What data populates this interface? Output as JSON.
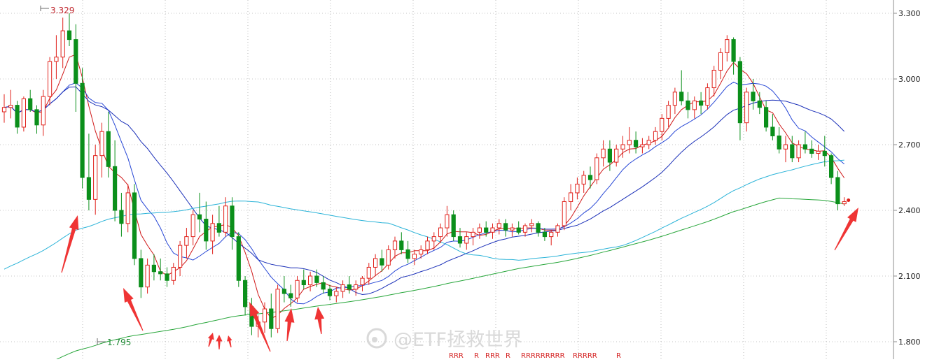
{
  "chart_data": {
    "type": "candlestick",
    "y_axis": {
      "ticks": [
        1.8,
        2.1,
        2.4,
        2.7,
        3.0,
        3.3
      ],
      "tick_labels": [
        "1.800",
        "2.100",
        "2.400",
        "2.700",
        "3.000",
        "3.300"
      ],
      "range": [
        1.77,
        3.35
      ]
    },
    "annotations": {
      "max_label": "3.329",
      "max_value": 3.329,
      "min_label": "1.795",
      "min_value": 1.795
    },
    "watermark": "@ETF拯救世界",
    "bottom_markers": [
      "RRR",
      "R",
      "RRR",
      "R",
      "RRRRRRRRR",
      "RRRRR",
      "R"
    ],
    "colors": {
      "up": "#e0211b",
      "down": "#0b8f1b",
      "ma5": "#d01818",
      "ma10": "#2747d6",
      "ma20": "#1a2fb8",
      "ma60": "#2ab3d8",
      "ma120": "#27a63a",
      "arrow": "#ef3434"
    },
    "ohlc": [
      [
        2.85,
        2.93,
        2.8,
        2.87
      ],
      [
        2.87,
        2.95,
        2.82,
        2.88
      ],
      [
        2.88,
        2.9,
        2.75,
        2.78
      ],
      [
        2.78,
        2.92,
        2.76,
        2.91
      ],
      [
        2.91,
        2.95,
        2.85,
        2.86
      ],
      [
        2.86,
        2.88,
        2.75,
        2.79
      ],
      [
        2.79,
        2.95,
        2.74,
        2.92
      ],
      [
        2.92,
        3.1,
        2.88,
        3.08
      ],
      [
        3.08,
        3.2,
        3.0,
        3.1
      ],
      [
        3.1,
        3.28,
        3.05,
        3.22
      ],
      [
        3.22,
        3.3,
        3.15,
        3.18
      ],
      [
        3.18,
        3.25,
        2.85,
        2.98
      ],
      [
        2.98,
        3.05,
        2.5,
        2.55
      ],
      [
        2.55,
        2.75,
        2.4,
        2.45
      ],
      [
        2.45,
        2.7,
        2.38,
        2.65
      ],
      [
        2.65,
        2.8,
        2.55,
        2.76
      ],
      [
        2.76,
        2.85,
        2.55,
        2.6
      ],
      [
        2.6,
        2.72,
        2.35,
        2.4
      ],
      [
        2.4,
        2.48,
        2.28,
        2.34
      ],
      [
        2.34,
        2.52,
        2.3,
        2.48
      ],
      [
        2.48,
        2.52,
        2.15,
        2.18
      ],
      [
        2.18,
        2.22,
        2.0,
        2.05
      ],
      [
        2.05,
        2.18,
        2.02,
        2.15
      ],
      [
        2.15,
        2.2,
        2.08,
        2.12
      ],
      [
        2.12,
        2.18,
        2.08,
        2.11
      ],
      [
        2.11,
        2.14,
        2.05,
        2.08
      ],
      [
        2.08,
        2.16,
        2.06,
        2.14
      ],
      [
        2.14,
        2.26,
        2.1,
        2.24
      ],
      [
        2.24,
        2.32,
        2.18,
        2.28
      ],
      [
        2.28,
        2.4,
        2.24,
        2.38
      ],
      [
        2.38,
        2.48,
        2.3,
        2.36
      ],
      [
        2.36,
        2.44,
        2.22,
        2.26
      ],
      [
        2.26,
        2.38,
        2.2,
        2.34
      ],
      [
        2.34,
        2.42,
        2.28,
        2.3
      ],
      [
        2.3,
        2.46,
        2.28,
        2.42
      ],
      [
        2.42,
        2.46,
        2.22,
        2.28
      ],
      [
        2.28,
        2.3,
        2.05,
        2.08
      ],
      [
        2.08,
        2.1,
        1.92,
        1.96
      ],
      [
        1.96,
        2.0,
        1.83,
        1.87
      ],
      [
        1.87,
        1.92,
        1.82,
        1.89
      ],
      [
        1.89,
        1.98,
        1.84,
        1.95
      ],
      [
        1.95,
        2.02,
        1.82,
        1.86
      ],
      [
        1.86,
        2.06,
        1.84,
        2.04
      ],
      [
        2.04,
        2.1,
        1.98,
        2.02
      ],
      [
        2.02,
        2.06,
        1.96,
        2.0
      ],
      [
        2.0,
        2.1,
        1.98,
        2.08
      ],
      [
        2.08,
        2.13,
        2.04,
        2.06
      ],
      [
        2.06,
        2.12,
        2.03,
        2.1
      ],
      [
        2.1,
        2.13,
        2.05,
        2.07
      ],
      [
        2.07,
        2.1,
        2.02,
        2.04
      ],
      [
        2.04,
        2.06,
        1.99,
        2.01
      ],
      [
        2.01,
        2.05,
        1.98,
        2.03
      ],
      [
        2.03,
        2.08,
        2.0,
        2.06
      ],
      [
        2.06,
        2.1,
        2.02,
        2.04
      ],
      [
        2.04,
        2.08,
        2.01,
        2.06
      ],
      [
        2.06,
        2.1,
        2.03,
        2.09
      ],
      [
        2.09,
        2.16,
        2.06,
        2.14
      ],
      [
        2.14,
        2.2,
        2.1,
        2.18
      ],
      [
        2.18,
        2.22,
        2.12,
        2.15
      ],
      [
        2.15,
        2.24,
        2.13,
        2.22
      ],
      [
        2.22,
        2.28,
        2.18,
        2.26
      ],
      [
        2.26,
        2.3,
        2.2,
        2.22
      ],
      [
        2.22,
        2.26,
        2.16,
        2.18
      ],
      [
        2.18,
        2.22,
        2.15,
        2.2
      ],
      [
        2.2,
        2.24,
        2.18,
        2.22
      ],
      [
        2.22,
        2.28,
        2.2,
        2.26
      ],
      [
        2.26,
        2.3,
        2.22,
        2.28
      ],
      [
        2.28,
        2.34,
        2.25,
        2.32
      ],
      [
        2.32,
        2.42,
        2.28,
        2.38
      ],
      [
        2.38,
        2.4,
        2.26,
        2.28
      ],
      [
        2.28,
        2.32,
        2.23,
        2.25
      ],
      [
        2.25,
        2.3,
        2.22,
        2.28
      ],
      [
        2.28,
        2.32,
        2.24,
        2.3
      ],
      [
        2.3,
        2.34,
        2.27,
        2.32
      ],
      [
        2.32,
        2.35,
        2.28,
        2.3
      ],
      [
        2.3,
        2.34,
        2.27,
        2.32
      ],
      [
        2.32,
        2.36,
        2.29,
        2.34
      ],
      [
        2.34,
        2.36,
        2.28,
        2.31
      ],
      [
        2.31,
        2.34,
        2.28,
        2.32
      ],
      [
        2.32,
        2.35,
        2.29,
        2.3
      ],
      [
        2.3,
        2.34,
        2.28,
        2.33
      ],
      [
        2.33,
        2.36,
        2.3,
        2.34
      ],
      [
        2.34,
        2.35,
        2.28,
        2.3
      ],
      [
        2.3,
        2.32,
        2.26,
        2.28
      ],
      [
        2.28,
        2.31,
        2.24,
        2.3
      ],
      [
        2.3,
        2.34,
        2.28,
        2.33
      ],
      [
        2.33,
        2.46,
        2.31,
        2.44
      ],
      [
        2.44,
        2.52,
        2.4,
        2.48
      ],
      [
        2.48,
        2.55,
        2.45,
        2.52
      ],
      [
        2.52,
        2.58,
        2.48,
        2.56
      ],
      [
        2.56,
        2.6,
        2.5,
        2.54
      ],
      [
        2.54,
        2.66,
        2.52,
        2.64
      ],
      [
        2.64,
        2.72,
        2.6,
        2.68
      ],
      [
        2.68,
        2.72,
        2.58,
        2.62
      ],
      [
        2.62,
        2.7,
        2.6,
        2.68
      ],
      [
        2.68,
        2.74,
        2.64,
        2.7
      ],
      [
        2.7,
        2.78,
        2.66,
        2.72
      ],
      [
        2.72,
        2.76,
        2.66,
        2.69
      ],
      [
        2.69,
        2.73,
        2.66,
        2.7
      ],
      [
        2.7,
        2.74,
        2.68,
        2.72
      ],
      [
        2.72,
        2.78,
        2.7,
        2.76
      ],
      [
        2.76,
        2.84,
        2.72,
        2.82
      ],
      [
        2.82,
        2.9,
        2.78,
        2.88
      ],
      [
        2.88,
        2.96,
        2.84,
        2.94
      ],
      [
        2.94,
        3.04,
        2.88,
        2.9
      ],
      [
        2.9,
        2.94,
        2.82,
        2.86
      ],
      [
        2.86,
        2.92,
        2.82,
        2.9
      ],
      [
        2.9,
        2.94,
        2.84,
        2.88
      ],
      [
        2.88,
        2.98,
        2.86,
        2.96
      ],
      [
        2.96,
        3.06,
        2.92,
        3.04
      ],
      [
        3.04,
        3.14,
        3.0,
        3.12
      ],
      [
        3.12,
        3.2,
        3.08,
        3.18
      ],
      [
        3.18,
        3.19,
        3.02,
        3.08
      ],
      [
        3.08,
        3.1,
        2.72,
        2.8
      ],
      [
        2.8,
        2.96,
        2.76,
        2.94
      ],
      [
        2.94,
        3.0,
        2.86,
        2.9
      ],
      [
        2.9,
        2.94,
        2.84,
        2.87
      ],
      [
        2.87,
        2.9,
        2.76,
        2.78
      ],
      [
        2.78,
        2.84,
        2.72,
        2.74
      ],
      [
        2.74,
        2.78,
        2.66,
        2.68
      ],
      [
        2.68,
        2.74,
        2.62,
        2.7
      ],
      [
        2.7,
        2.74,
        2.62,
        2.64
      ],
      [
        2.64,
        2.72,
        2.62,
        2.7
      ],
      [
        2.7,
        2.76,
        2.66,
        2.68
      ],
      [
        2.68,
        2.72,
        2.64,
        2.66
      ],
      [
        2.66,
        2.7,
        2.63,
        2.67
      ],
      [
        2.67,
        2.74,
        2.6,
        2.65
      ],
      [
        2.65,
        2.66,
        2.52,
        2.55
      ],
      [
        2.55,
        2.58,
        2.4,
        2.43
      ],
      [
        2.43,
        2.46,
        2.42,
        2.44
      ]
    ]
  }
}
